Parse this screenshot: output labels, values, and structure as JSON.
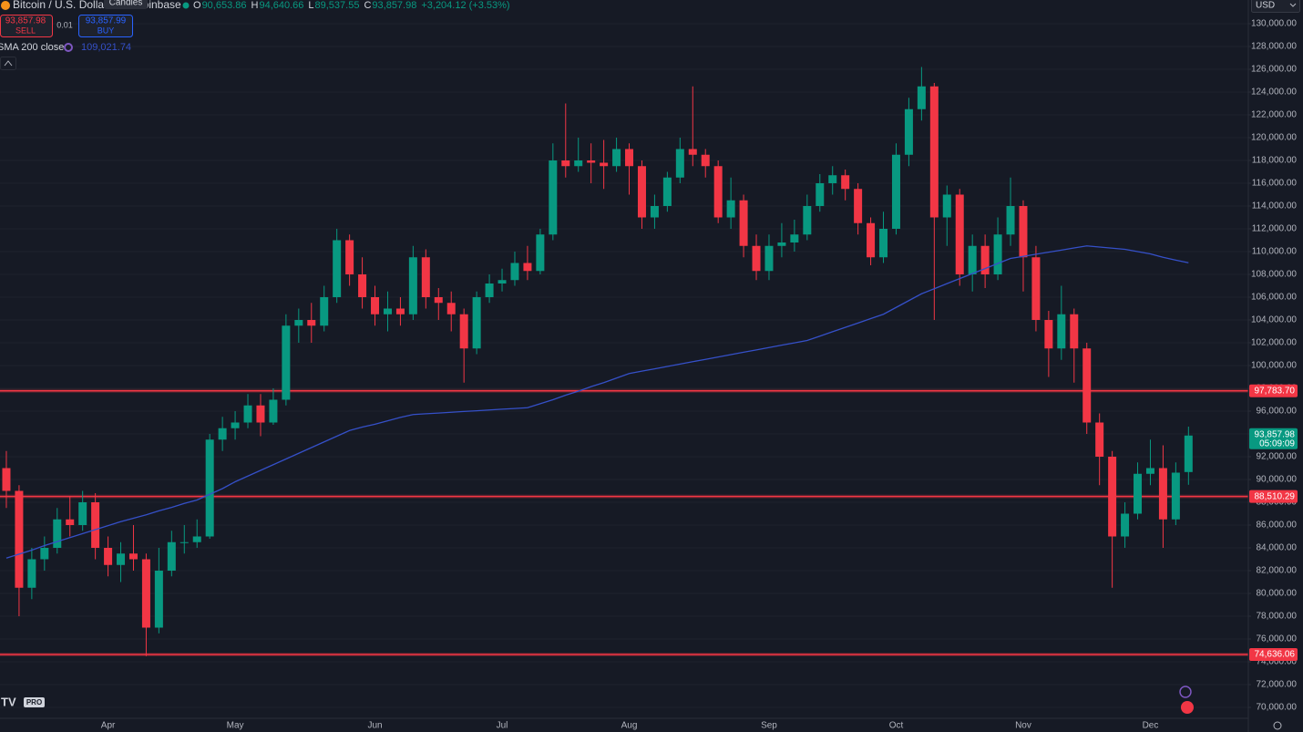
{
  "chart_data": {
    "type": "candlestick",
    "title": "Bitcoin / U.S. Dollar",
    "exchange": "Coinbase",
    "tooltip": "Candles",
    "header": {
      "ohlc": [
        {
          "key": "O",
          "value": "90,653.86"
        },
        {
          "key": "H",
          "value": "94,640.66"
        },
        {
          "key": "L",
          "value": "89,537.55"
        },
        {
          "key": "C",
          "value": "93,857.98"
        }
      ],
      "change": "+3,204.12 (+3.53%)",
      "sell_price": "93,857.98",
      "sell": "SELL",
      "spread": "0.01",
      "buy_price": "93,857.99",
      "buy": "BUY"
    },
    "currency": "USD",
    "logo": "PRO",
    "categories": [
      null,
      null,
      null,
      null,
      null,
      null,
      null,
      null,
      "Apr",
      null,
      null,
      null,
      null,
      null,
      null,
      null,
      null,
      null,
      "May",
      null,
      null,
      null,
      null,
      null,
      null,
      null,
      null,
      null,
      null,
      "Jun",
      null,
      null,
      null,
      null,
      null,
      null,
      null,
      null,
      null,
      "Jul",
      null,
      null,
      null,
      null,
      null,
      null,
      null,
      null,
      null,
      "Aug",
      null,
      null,
      null,
      null,
      null,
      null,
      null,
      null,
      null,
      null,
      "Sep",
      null,
      null,
      null,
      null,
      null,
      null,
      null,
      null,
      null,
      "Oct",
      null,
      null,
      null,
      null,
      null,
      null,
      null,
      null,
      null,
      "Nov",
      null,
      null,
      null,
      null,
      null,
      null,
      null,
      null,
      null,
      "Dec",
      null,
      null,
      null
    ],
    "candles": {
      "up_color": "#089981",
      "down_color": "#f23645",
      "open": [
        91000,
        89000,
        80500,
        83000,
        84000,
        86500,
        86000,
        88000,
        84000,
        82500,
        83500,
        83000,
        77000,
        82000,
        84500,
        84500,
        85000,
        93500,
        94500,
        95000,
        96500,
        95000,
        97000,
        103500,
        104000,
        103500,
        106000,
        111000,
        108000,
        106000,
        104500,
        105000,
        104500,
        109500,
        106000,
        105500,
        104500,
        101500,
        106000,
        107200,
        107500,
        109000,
        108300,
        111500,
        118000,
        117500,
        118000,
        117800,
        117500,
        119000,
        117500,
        113000,
        114000,
        116500,
        119000,
        118500,
        117500,
        113000,
        114500,
        110500,
        108300,
        110500,
        110800,
        111500,
        114000,
        116000,
        116700,
        115500,
        112500,
        109500,
        112000,
        118500,
        122500,
        124500,
        113000,
        115000,
        108000,
        110500,
        108000,
        111500,
        114000,
        109500,
        104000,
        101500,
        104500,
        101500,
        95000,
        92000,
        85000,
        87000,
        90500,
        91000,
        86500,
        90653.86
      ],
      "high": [
        92500,
        89500,
        84000,
        85000,
        87500,
        88500,
        89000,
        88800,
        85000,
        84500,
        86000,
        83500,
        84000,
        85500,
        86000,
        86500,
        94000,
        95500,
        96000,
        97500,
        97500,
        98000,
        104500,
        105000,
        105500,
        107000,
        112000,
        111500,
        109500,
        107000,
        106500,
        106000,
        110500,
        110200,
        106800,
        106500,
        105000,
        106500,
        108000,
        108500,
        110000,
        110500,
        112000,
        119500,
        123000,
        120000,
        119500,
        119800,
        120000,
        119500,
        118000,
        115000,
        117000,
        120000,
        124500,
        119000,
        118000,
        116500,
        115000,
        111500,
        111500,
        112500,
        112800,
        115000,
        116800,
        117500,
        117200,
        116000,
        113000,
        113500,
        119500,
        123500,
        126200,
        124800,
        115800,
        115500,
        111500,
        111500,
        113000,
        116500,
        114500,
        110500,
        104800,
        107000,
        105000,
        102000,
        95800,
        92500,
        88000,
        91500,
        93500,
        93000,
        91500,
        94640.66
      ],
      "low": [
        87500,
        78000,
        79500,
        82000,
        83500,
        85000,
        85500,
        83000,
        81500,
        81000,
        82000,
        74500,
        76500,
        81500,
        83500,
        84000,
        84800,
        92500,
        93500,
        94500,
        93800,
        94800,
        96500,
        102000,
        102000,
        103000,
        105500,
        107000,
        105000,
        103500,
        103000,
        103500,
        104000,
        105000,
        104000,
        103000,
        98500,
        101000,
        105500,
        106500,
        107000,
        107500,
        108000,
        111000,
        116500,
        117000,
        116000,
        115500,
        117000,
        115000,
        112000,
        112000,
        113500,
        116000,
        117500,
        116500,
        112500,
        112000,
        109500,
        107500,
        107500,
        109500,
        110000,
        111000,
        113500,
        115000,
        114500,
        111500,
        108800,
        109000,
        111500,
        117500,
        121500,
        104000,
        110500,
        107000,
        106500,
        106800,
        107500,
        110500,
        106500,
        103000,
        99000,
        100500,
        98500,
        94000,
        89500,
        80500,
        84000,
        86500,
        89500,
        84000,
        86000,
        89537.55
      ],
      "close": [
        89000,
        80500,
        83000,
        84000,
        86500,
        86000,
        88000,
        84000,
        82500,
        83500,
        83000,
        77000,
        82000,
        84500,
        84500,
        85000,
        93500,
        94500,
        95000,
        96500,
        95000,
        97000,
        103500,
        104000,
        103500,
        106000,
        111000,
        108000,
        106000,
        104500,
        105000,
        104500,
        109500,
        106000,
        105500,
        104500,
        101500,
        106000,
        107200,
        107500,
        109000,
        108300,
        111500,
        118000,
        117500,
        118000,
        117800,
        117500,
        119000,
        117500,
        113000,
        114000,
        116500,
        119000,
        118500,
        117500,
        113000,
        114500,
        110500,
        108300,
        110500,
        110800,
        111500,
        114000,
        116000,
        116700,
        115500,
        112500,
        109500,
        112000,
        118500,
        122500,
        124500,
        113000,
        115000,
        108000,
        110500,
        108000,
        111500,
        114000,
        109500,
        104000,
        101500,
        104500,
        101500,
        95000,
        92000,
        85000,
        87000,
        90500,
        91000,
        86500,
        90600,
        93857.98
      ]
    },
    "sma": {
      "name": "SMA 200 close",
      "color": "#3550c8",
      "value_label": "109,021.74",
      "values": [
        83100,
        83450,
        83800,
        84200,
        84550,
        84900,
        85250,
        85600,
        85950,
        86300,
        86600,
        86900,
        87250,
        87550,
        87900,
        88200,
        88700,
        89200,
        89800,
        90300,
        90800,
        91300,
        91800,
        92300,
        92800,
        93300,
        93800,
        94300,
        94600,
        94850,
        95150,
        95450,
        95700,
        95770,
        95830,
        95900,
        95970,
        96030,
        96100,
        96170,
        96230,
        96300,
        96650,
        97000,
        97400,
        97750,
        98150,
        98500,
        98900,
        99300,
        99510,
        99710,
        99920,
        100130,
        100340,
        100540,
        100750,
        100960,
        101170,
        101370,
        101580,
        101790,
        101990,
        102200,
        102580,
        102970,
        103350,
        103730,
        104120,
        104500,
        105100,
        105700,
        106300,
        106740,
        107190,
        107630,
        108070,
        108510,
        108960,
        109400,
        109580,
        109770,
        109950,
        110130,
        110320,
        110500,
        110400,
        110300,
        110200,
        110000,
        109800,
        109500,
        109250,
        109021.74
      ]
    },
    "levels": [
      {
        "value": 97783.7,
        "label": "97,783.70",
        "color": "#f23645"
      },
      {
        "value": 88510.29,
        "label": "88,510.29",
        "color": "#f23645"
      },
      {
        "value": 74636.06,
        "label": "74,636.06",
        "color": "#f23645"
      }
    ],
    "last_price": {
      "value": 93857.98,
      "label": "93,857.98",
      "countdown": "05:09:09",
      "color": "#089981"
    },
    "ylim": [
      69040,
      132080
    ],
    "yticks": [
      {
        "value": 70000,
        "label": "70,000.00"
      },
      {
        "value": 72000,
        "label": "72,000.00"
      },
      {
        "value": 74000,
        "label": "74,000.00"
      },
      {
        "value": 76000,
        "label": "76,000.00"
      },
      {
        "value": 78000,
        "label": "78,000.00"
      },
      {
        "value": 80000,
        "label": "80,000.00"
      },
      {
        "value": 82000,
        "label": "82,000.00"
      },
      {
        "value": 84000,
        "label": "84,000.00"
      },
      {
        "value": 86000,
        "label": "86,000.00"
      },
      {
        "value": 88000,
        "label": "88,000.00"
      },
      {
        "value": 90000,
        "label": "90,000.00"
      },
      {
        "value": 92000,
        "label": "92,000.00"
      },
      {
        "value": 94000,
        "label": "94,000.00"
      },
      {
        "value": 96000,
        "label": "96,000.00"
      },
      {
        "value": 98000,
        "label": "98,000.00"
      },
      {
        "value": 100000,
        "label": "100,000.00"
      },
      {
        "value": 102000,
        "label": "102,000.00"
      },
      {
        "value": 104000,
        "label": "104,000.00"
      },
      {
        "value": 106000,
        "label": "106,000.00"
      },
      {
        "value": 108000,
        "label": "108,000.00"
      },
      {
        "value": 110000,
        "label": "110,000.00"
      },
      {
        "value": 112000,
        "label": "112,000.00"
      },
      {
        "value": 114000,
        "label": "114,000.00"
      },
      {
        "value": 116000,
        "label": "116,000.00"
      },
      {
        "value": 118000,
        "label": "118,000.00"
      },
      {
        "value": 120000,
        "label": "120,000.00"
      },
      {
        "value": 122000,
        "label": "122,000.00"
      },
      {
        "value": 124000,
        "label": "124,000.00"
      },
      {
        "value": 126000,
        "label": "126,000.00"
      },
      {
        "value": 128000,
        "label": "128,000.00"
      },
      {
        "value": 130000,
        "label": "130,000.00"
      }
    ],
    "grid": true,
    "grid_color": "#1e222d"
  }
}
